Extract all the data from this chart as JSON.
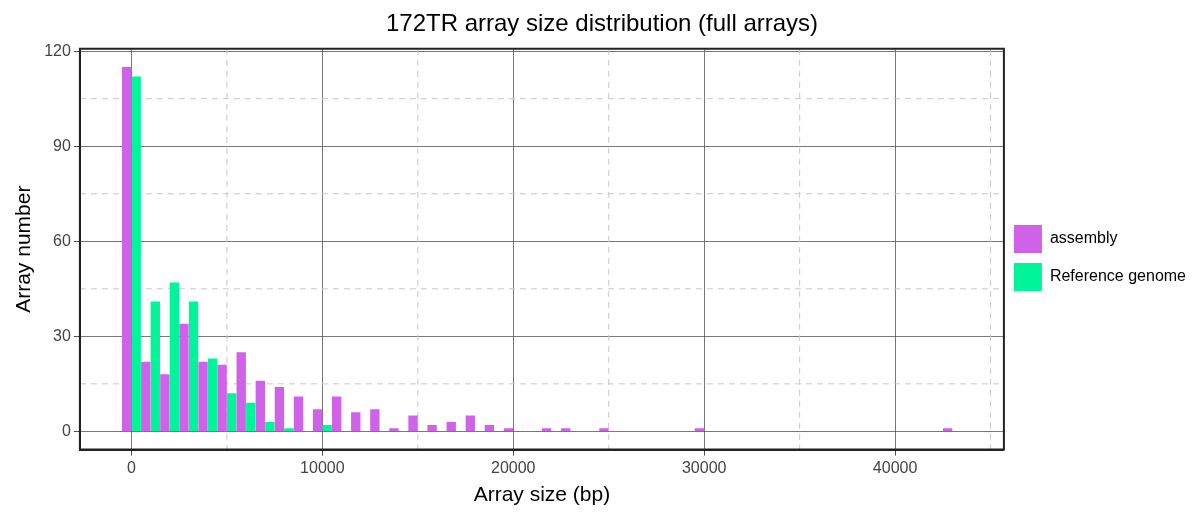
{
  "chart_data": {
    "type": "histogram",
    "title": "172TR array size distribution (full arrays)",
    "xlabel": "Array size (bp)",
    "ylabel": "Array number",
    "bins": [
      -500,
      500,
      1500,
      2500,
      3500,
      4500,
      5500,
      6500,
      7500,
      8500,
      9500,
      10500,
      11500,
      12500,
      13500,
      14500,
      15500,
      16500,
      17500,
      18500,
      19500,
      20500,
      21500,
      22500,
      23500,
      24500,
      25500,
      26500,
      27500,
      28500,
      29500,
      30500,
      31500,
      32500,
      33500,
      34500,
      35500,
      36500,
      37500,
      38500,
      39500,
      40500,
      41500,
      42500,
      43500
    ],
    "series": [
      {
        "name": "assembly",
        "color": "#d062ea",
        "values": [
          115,
          22,
          18,
          34,
          22,
          21,
          25,
          16,
          14,
          11,
          7,
          11,
          6,
          7,
          1,
          5,
          2,
          3,
          5,
          2,
          1,
          0,
          1,
          1,
          0,
          1,
          0,
          0,
          0,
          0,
          1,
          0,
          0,
          0,
          0,
          0,
          0,
          0,
          0,
          0,
          0,
          0,
          0,
          1
        ]
      },
      {
        "name": "Reference genome",
        "color": "#00f59a",
        "values": [
          112,
          41,
          47,
          41,
          23,
          12,
          9,
          3,
          1,
          0,
          2,
          0,
          0,
          0,
          0,
          0,
          0,
          0,
          0,
          0,
          0,
          0,
          0,
          0,
          0,
          0,
          0,
          0,
          0,
          0,
          0,
          0,
          0,
          0,
          0,
          0,
          0,
          0,
          0,
          0,
          0,
          0,
          0,
          0
        ]
      }
    ],
    "xlim": [
      -2700,
      45700
    ],
    "xticks": [
      0,
      10000,
      20000,
      30000,
      40000
    ],
    "ylim": [
      -5.75,
      120.75
    ],
    "yticks": [
      0,
      30,
      60,
      90,
      120
    ],
    "grid": true,
    "legend": "right"
  }
}
